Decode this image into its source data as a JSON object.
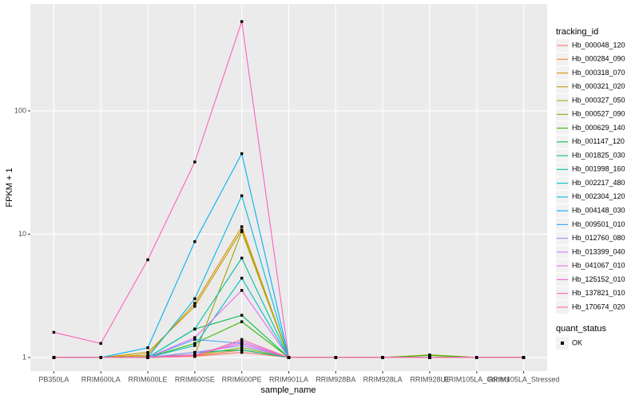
{
  "chart_data": {
    "type": "line",
    "x_label": "sample_name",
    "y_label": "FPKM + 1",
    "legend_title": "tracking_id",
    "point_legend_title": "quant_status",
    "point_legend_label": "OK",
    "categories": [
      "PB350LA",
      "RRIM600LA",
      "RRIM600LE",
      "RRIM600SE",
      "RRIM600PE",
      "RRIM901LA",
      "RRIM928BA",
      "RRIM928LA",
      "RRIM928LE",
      "RRIM105LA_Control",
      "RRIM105LA_Stressed"
    ],
    "log_scale": true,
    "grid": true,
    "legend_position": "right",
    "point_color": "#000000",
    "ylim": [
      0.776,
      736
    ],
    "yticks": [
      1,
      10,
      100
    ],
    "series": [
      {
        "name": "Hb_000048_120",
        "color": "#F8766D",
        "values": [
          1,
          1,
          1,
          1.02,
          1.1,
          1,
          1,
          1,
          1,
          1,
          1
        ]
      },
      {
        "name": "Hb_000284_090",
        "color": "#EA8331",
        "values": [
          1,
          1,
          1,
          1.03,
          1.15,
          1,
          1,
          1,
          1,
          1,
          1
        ]
      },
      {
        "name": "Hb_000318_070",
        "color": "#D89000",
        "values": [
          1,
          1,
          1.05,
          2.75,
          11.5,
          1,
          1,
          1,
          1,
          1,
          1
        ]
      },
      {
        "name": "Hb_000321_020",
        "color": "#C09B00",
        "values": [
          1,
          1,
          1.1,
          2.6,
          10.8,
          1,
          1,
          1,
          1,
          1,
          1
        ]
      },
      {
        "name": "Hb_000327_050",
        "color": "#A3A500",
        "values": [
          1,
          1,
          1.02,
          1.05,
          10.5,
          1,
          1,
          1,
          1.05,
          1,
          1
        ]
      },
      {
        "name": "Hb_000527_090",
        "color": "#7CAE00",
        "values": [
          1,
          1,
          1,
          1.05,
          1.2,
          1,
          1,
          1,
          1,
          1,
          1
        ]
      },
      {
        "name": "Hb_000629_140",
        "color": "#39B600",
        "values": [
          1,
          1,
          1,
          1.3,
          1.95,
          1,
          1,
          1,
          1.04,
          1,
          1
        ]
      },
      {
        "name": "Hb_001147_120",
        "color": "#00BB4E",
        "values": [
          1,
          1,
          1,
          1.7,
          2.2,
          1,
          1,
          1,
          1,
          1,
          1
        ]
      },
      {
        "name": "Hb_001825_030",
        "color": "#00BF7D",
        "values": [
          1,
          1,
          1,
          1.1,
          1.15,
          1,
          1,
          1,
          1,
          1,
          1
        ]
      },
      {
        "name": "Hb_001998_160",
        "color": "#00C1A3",
        "values": [
          1,
          1,
          1,
          1.7,
          6.4,
          1,
          1,
          1,
          1,
          1,
          1
        ]
      },
      {
        "name": "Hb_002217_480",
        "color": "#00BFC4",
        "values": [
          1,
          1,
          1,
          1.25,
          4.4,
          1,
          1,
          1,
          1,
          1,
          1
        ]
      },
      {
        "name": "Hb_002304_120",
        "color": "#00BAE0",
        "values": [
          1,
          1,
          1,
          3.0,
          20.5,
          1,
          1,
          1,
          1,
          1,
          1
        ]
      },
      {
        "name": "Hb_004148_030",
        "color": "#00B0F6",
        "values": [
          1,
          1,
          1.2,
          8.7,
          45,
          1,
          1,
          1,
          1,
          1,
          1
        ]
      },
      {
        "name": "Hb_009501_010",
        "color": "#35A2FF",
        "values": [
          1,
          1,
          1,
          1.4,
          1.3,
          1,
          1,
          1,
          1,
          1,
          1
        ]
      },
      {
        "name": "Hb_012760_080",
        "color": "#9590FF",
        "values": [
          1,
          1,
          1,
          1.1,
          1.25,
          1,
          1,
          1,
          1,
          1,
          1
        ]
      },
      {
        "name": "Hb_013399_040",
        "color": "#C77CFF",
        "values": [
          1,
          1,
          1,
          1.05,
          1.35,
          1,
          1,
          1,
          1,
          1,
          1
        ]
      },
      {
        "name": "Hb_041067_010",
        "color": "#E76BF3",
        "values": [
          1,
          1,
          1,
          1.45,
          3.5,
          1,
          1,
          1,
          1,
          1,
          1
        ]
      },
      {
        "name": "Hb_125152_010",
        "color": "#FA62DB",
        "values": [
          1,
          1,
          1,
          1.05,
          1.3,
          1,
          1,
          1,
          1,
          1,
          1
        ]
      },
      {
        "name": "Hb_137821_010",
        "color": "#FF62BC",
        "values": [
          1.6,
          1.3,
          6.2,
          38.5,
          530,
          1,
          1,
          1,
          1,
          1,
          1
        ]
      },
      {
        "name": "Hb_170674_020",
        "color": "#FF6C91",
        "values": [
          1,
          1,
          1,
          1.02,
          1.4,
          1,
          1,
          1,
          1,
          1,
          1
        ]
      }
    ]
  }
}
